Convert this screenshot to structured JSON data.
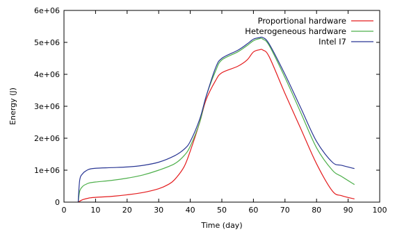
{
  "chart_data": {
    "type": "line",
    "title": "",
    "xlabel": "Time (day)",
    "ylabel": "Energy (J)",
    "xlim": [
      0,
      100
    ],
    "ylim": [
      0,
      6000000
    ],
    "x_ticks": [
      0,
      10,
      20,
      30,
      40,
      50,
      60,
      70,
      80,
      90,
      100
    ],
    "x_tick_labels": [
      "0",
      "10",
      "20",
      "30",
      "40",
      "50",
      "60",
      "70",
      "80",
      "90",
      "100"
    ],
    "y_ticks": [
      0,
      1000000,
      2000000,
      3000000,
      4000000,
      5000000,
      6000000
    ],
    "y_tick_labels": [
      "0",
      "1e+06",
      "2e+06",
      "3e+06",
      "4e+06",
      "5e+06",
      "6e+06"
    ],
    "grid": false,
    "legend_position": "top-right",
    "series": [
      {
        "name": "Proportional hardware",
        "color": "#e41a1c",
        "x": [
          4.5,
          5,
          6,
          8,
          10,
          15,
          20,
          25,
          30,
          33,
          35,
          38,
          40,
          43,
          45,
          48,
          50,
          55,
          58,
          60,
          62,
          63,
          65,
          70,
          75,
          80,
          85,
          88,
          92
        ],
        "y": [
          0,
          30000,
          80000,
          130000,
          150000,
          180000,
          230000,
          300000,
          420000,
          550000,
          700000,
          1100000,
          1600000,
          2500000,
          3200000,
          3800000,
          4050000,
          4250000,
          4450000,
          4700000,
          4770000,
          4760000,
          4550000,
          3400000,
          2300000,
          1200000,
          350000,
          200000,
          100000
        ]
      },
      {
        "name": "Heterogeneous hardware",
        "color": "#4daf4a",
        "x": [
          4.5,
          5,
          6,
          7,
          8,
          10,
          15,
          20,
          25,
          30,
          35,
          38,
          40,
          43,
          45,
          48,
          50,
          55,
          58,
          60,
          62,
          63,
          65,
          70,
          75,
          80,
          85,
          88,
          92
        ],
        "y": [
          0,
          350000,
          500000,
          560000,
          600000,
          630000,
          680000,
          750000,
          850000,
          1000000,
          1200000,
          1450000,
          1750000,
          2500000,
          3300000,
          4100000,
          4450000,
          4700000,
          4900000,
          5050000,
          5120000,
          5100000,
          4900000,
          3900000,
          2800000,
          1700000,
          1000000,
          800000,
          550000
        ]
      },
      {
        "name": "Intel I7",
        "color": "#283593",
        "x": [
          4.5,
          5,
          6,
          7,
          8,
          10,
          15,
          20,
          25,
          30,
          35,
          38,
          40,
          43,
          45,
          48,
          50,
          55,
          58,
          60,
          62,
          63,
          65,
          70,
          75,
          80,
          85,
          88,
          92
        ],
        "y": [
          0,
          700000,
          900000,
          980000,
          1030000,
          1060000,
          1080000,
          1100000,
          1150000,
          1250000,
          1450000,
          1650000,
          1900000,
          2600000,
          3300000,
          4200000,
          4500000,
          4750000,
          4950000,
          5100000,
          5150000,
          5150000,
          4950000,
          4000000,
          2950000,
          1900000,
          1250000,
          1150000,
          1050000
        ]
      }
    ]
  }
}
